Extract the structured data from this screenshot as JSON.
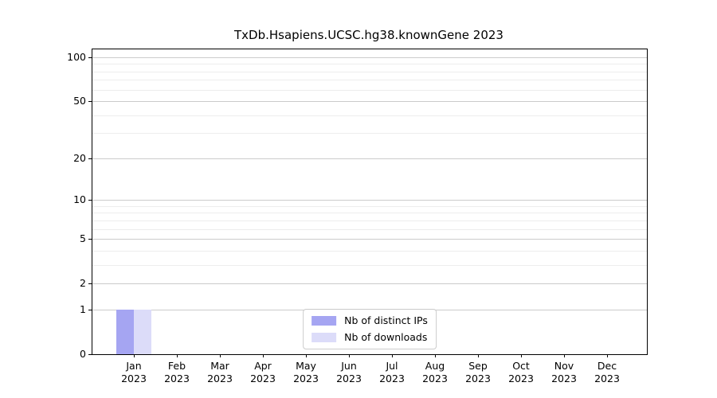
{
  "chart_data": {
    "type": "bar",
    "title": "TxDb.Hsapiens.UCSC.hg38.knownGene 2023",
    "xlabel": "",
    "ylabel": "",
    "yscale": "log1p",
    "ylim": [
      0,
      113
    ],
    "y_major_ticks": [
      0,
      1,
      2,
      5,
      10,
      20,
      50,
      100
    ],
    "y_minor_ticks": [
      3,
      4,
      6,
      7,
      8,
      9,
      30,
      40,
      60,
      70,
      80,
      90
    ],
    "grid": "horizontal",
    "legend_position": "lower center",
    "categories": [
      {
        "month": "Jan",
        "year": "2023"
      },
      {
        "month": "Feb",
        "year": "2023"
      },
      {
        "month": "Mar",
        "year": "2023"
      },
      {
        "month": "Apr",
        "year": "2023"
      },
      {
        "month": "May",
        "year": "2023"
      },
      {
        "month": "Jun",
        "year": "2023"
      },
      {
        "month": "Jul",
        "year": "2023"
      },
      {
        "month": "Aug",
        "year": "2023"
      },
      {
        "month": "Sep",
        "year": "2023"
      },
      {
        "month": "Oct",
        "year": "2023"
      },
      {
        "month": "Nov",
        "year": "2023"
      },
      {
        "month": "Dec",
        "year": "2023"
      }
    ],
    "series": [
      {
        "name": "Nb of distinct IPs",
        "color": "#a5a5f2",
        "values": [
          1,
          0,
          0,
          0,
          0,
          0,
          0,
          0,
          0,
          0,
          0,
          0
        ]
      },
      {
        "name": "Nb of downloads",
        "color": "#dcdcf9",
        "values": [
          1,
          0,
          0,
          0,
          0,
          0,
          0,
          0,
          0,
          0,
          0,
          0
        ]
      }
    ]
  },
  "colors": {
    "major_grid": "#cbcbcb",
    "minor_grid": "#ededed",
    "spine": "#000000",
    "legend_border": "#cccccc"
  }
}
